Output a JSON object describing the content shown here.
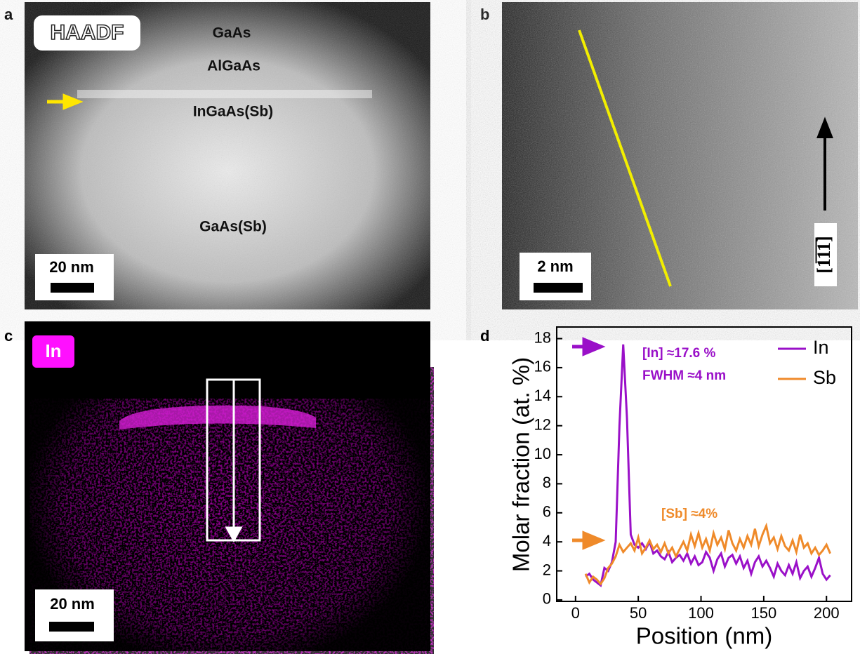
{
  "panels": {
    "a": {
      "letter": "a",
      "badge": "HAADF",
      "layers": [
        "GaAs",
        "AlGaAs",
        "InGaAs(Sb)",
        "GaAs(Sb)"
      ],
      "scale": "20 nm"
    },
    "b": {
      "letter": "b",
      "scale": "2 nm",
      "direction": "[1̅1̅1̅]"
    },
    "c": {
      "letter": "c",
      "badge": "In",
      "scale": "20 nm"
    },
    "d": {
      "letter": "d"
    }
  },
  "chart_data": {
    "type": "line",
    "x_label": "Position (nm)",
    "y_label": "Molar fraction (at. %)",
    "annotations": [
      "[In] ≈17.6 %",
      "FWHM ≈4 nm",
      "[Sb] ≈4%"
    ],
    "x": [
      8,
      11,
      14,
      17,
      20,
      23,
      26,
      29,
      32,
      35,
      38,
      41,
      44,
      47,
      50,
      53,
      56,
      59,
      62,
      65,
      68,
      71,
      74,
      77,
      80,
      83,
      86,
      89,
      92,
      95,
      98,
      101,
      104,
      107,
      110,
      113,
      116,
      119,
      122,
      125,
      128,
      131,
      134,
      137,
      140,
      143,
      146,
      149,
      152,
      155,
      158,
      161,
      164,
      167,
      170,
      173,
      176,
      179,
      182,
      185,
      188,
      191,
      194,
      197,
      200,
      203
    ],
    "series": [
      {
        "name": "In",
        "color": "#9a10c8",
        "values": [
          1.6,
          1.8,
          1.4,
          1.2,
          1.0,
          2.2,
          2.0,
          2.6,
          4.0,
          12.0,
          17.6,
          12.5,
          4.5,
          3.8,
          3.6,
          3.9,
          3.5,
          4.0,
          3.2,
          3.4,
          3.0,
          2.8,
          3.3,
          2.6,
          2.9,
          3.1,
          2.7,
          3.2,
          2.5,
          3.0,
          2.4,
          2.6,
          3.3,
          2.9,
          2.0,
          2.8,
          3.2,
          2.3,
          2.9,
          3.1,
          2.5,
          3.0,
          2.2,
          2.7,
          1.8,
          2.6,
          3.0,
          2.3,
          2.7,
          2.2,
          1.6,
          2.5,
          2.0,
          1.7,
          2.4,
          1.8,
          2.6,
          1.5,
          2.0,
          2.3,
          1.6,
          2.2,
          2.9,
          1.8,
          1.4,
          1.7
        ]
      },
      {
        "name": "Sb",
        "color": "#ef8a2a",
        "values": [
          1.8,
          1.2,
          1.6,
          1.4,
          1.1,
          1.5,
          2.2,
          2.5,
          3.0,
          3.8,
          3.3,
          3.6,
          3.9,
          3.4,
          4.3,
          3.2,
          3.6,
          4.1,
          3.5,
          3.8,
          3.3,
          3.9,
          3.2,
          3.6,
          3.0,
          3.5,
          4.0,
          3.4,
          4.5,
          3.7,
          4.6,
          3.6,
          4.2,
          3.4,
          4.6,
          3.8,
          4.3,
          3.5,
          4.8,
          3.9,
          3.4,
          4.2,
          3.6,
          4.4,
          3.8,
          4.9,
          3.7,
          4.5,
          5.1,
          3.9,
          4.3,
          3.5,
          4.4,
          3.7,
          3.4,
          4.1,
          3.3,
          4.5,
          3.6,
          3.9,
          3.2,
          3.6,
          3.1,
          3.4,
          3.8,
          3.2
        ]
      }
    ],
    "xlim": [
      -15,
      220
    ],
    "xticks": [
      0,
      50,
      100,
      150,
      200
    ],
    "ylim": [
      -0.1,
      18.8
    ],
    "yticks": [
      0,
      2,
      4,
      6,
      8,
      10,
      12,
      14,
      16,
      18
    ],
    "legend": "upper right"
  }
}
